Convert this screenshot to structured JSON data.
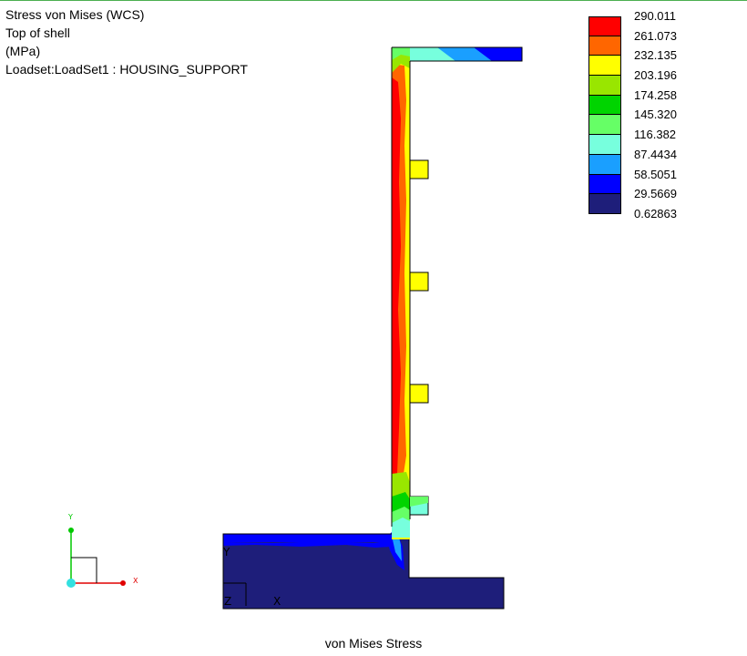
{
  "result": {
    "title": "Stress von Mises (WCS)",
    "surface": "Top of shell",
    "units": "(MPa)",
    "loadset": "Loadset:LoadSet1 :  HOUSING_SUPPORT"
  },
  "legend": {
    "colors": [
      "#ff0000",
      "#ff6600",
      "#ffff00",
      "#99e600",
      "#00d400",
      "#66ff66",
      "#77ffdd",
      "#1a9fff",
      "#0000ff",
      "#1e1e7a"
    ],
    "labels": [
      "290.011",
      "261.073",
      "232.135",
      "203.196",
      "174.258",
      "145.320",
      "116.382",
      "87.4434",
      "58.5051",
      "29.5669",
      "0.62863"
    ]
  },
  "triad": {
    "y": "Y",
    "x": "X"
  },
  "model_triad": {
    "y": "Y",
    "z": "Z",
    "x": "X"
  },
  "caption": "von Mises Stress"
}
